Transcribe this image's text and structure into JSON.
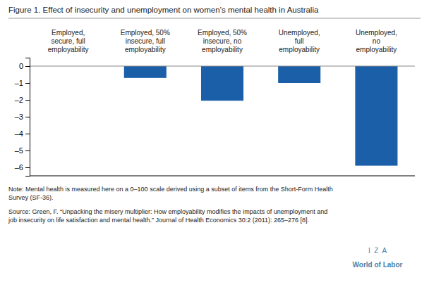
{
  "chart_data": {
    "type": "bar",
    "title": "Figure 1. Effect of insecurity and unemployment on women’s mental health in Australia",
    "categories": [
      "Employed,\nsecure, full\nemployability",
      "Employed, 50%\ninsecure, full\nemployability",
      "Employed, 50%\ninsecure, no\nemployability",
      "Unemployed,\nfull\nemployability",
      "Unemployed,\nno\nemployability"
    ],
    "values": [
      0.0,
      -0.7,
      -2.05,
      -1.0,
      -5.9
    ],
    "color": "#1a5fa8",
    "ylim": [
      -6.5,
      0.5
    ],
    "yticks": [
      0,
      {
        "value": -1,
        "label": "–1"
      },
      {
        "value": -2,
        "label": "–2"
      },
      {
        "value": -3,
        "label": "–3"
      },
      {
        "value": -4,
        "label": "–4"
      },
      {
        "value": -5,
        "label": "–5"
      },
      {
        "value": -6,
        "label": "–6"
      }
    ],
    "grid": false,
    "annotations": [
      "Note: Mental health is measured here on a 0–100 scale derived using a subset of items from the Short-Form Health\nSurvey (SF-36).",
      "Source: Green, F. “Unpacking the misery multiplier: How employability modifies the impacts of unemployment and\njob insecurity on life satisfaction and mental health.” Journal of Health Economics 30:2 (2011): 265–276 [8].",
      "I  Z  A",
      "World of Labor"
    ]
  }
}
